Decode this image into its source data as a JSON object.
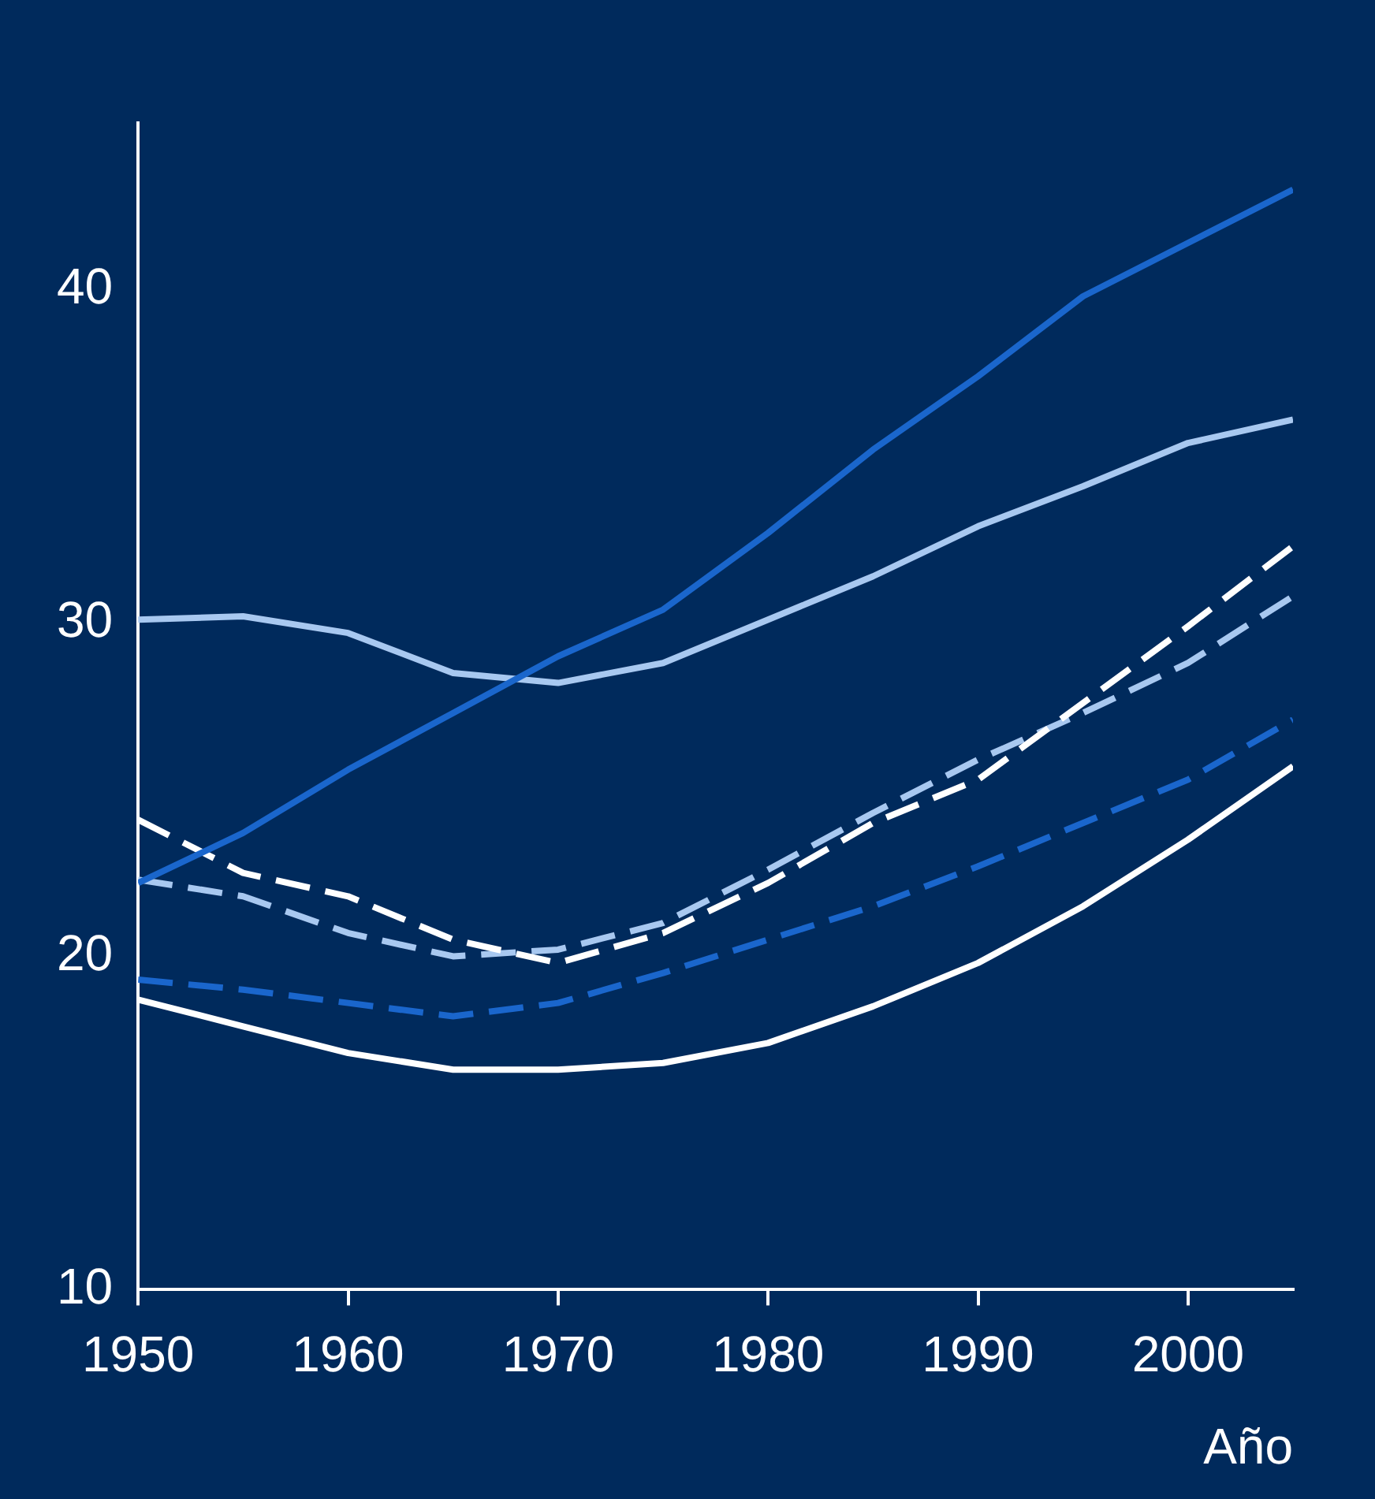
{
  "chart_data": {
    "type": "line",
    "xlabel": "Año",
    "x": [
      1950,
      1955,
      1960,
      1965,
      1970,
      1975,
      1980,
      1985,
      1990,
      1995,
      2000,
      2005
    ],
    "series": [
      {
        "color": "#1a66cc",
        "line_style": "solid",
        "values": [
          22.2,
          23.7,
          25.6,
          27.3,
          29.0,
          30.4,
          32.7,
          35.2,
          37.4,
          39.8,
          41.4,
          43.0
        ]
      },
      {
        "color": "#a8c8f0",
        "line_style": "solid",
        "values": [
          30.1,
          30.2,
          29.7,
          28.5,
          28.2,
          28.8,
          30.1,
          31.4,
          32.9,
          34.1,
          35.4,
          36.1
        ]
      },
      {
        "color": "#ffffff",
        "line_style": "solid",
        "values": [
          18.7,
          17.9,
          17.1,
          16.6,
          16.6,
          16.8,
          17.4,
          18.5,
          19.8,
          21.5,
          23.5,
          25.7
        ]
      },
      {
        "color": "#ffffff",
        "line_style": "dashed",
        "values": [
          24.1,
          22.5,
          21.8,
          20.5,
          19.8,
          20.7,
          22.2,
          24.0,
          25.3,
          27.6,
          29.9,
          32.3
        ]
      },
      {
        "color": "#a8c8f0",
        "line_style": "dashed",
        "values": [
          22.3,
          21.8,
          20.7,
          20.0,
          20.2,
          21.0,
          22.6,
          24.3,
          25.9,
          27.3,
          28.8,
          30.8
        ]
      },
      {
        "color": "#1a66cc",
        "line_style": "dashed",
        "values": [
          19.3,
          19.0,
          18.6,
          18.2,
          18.6,
          19.5,
          20.5,
          21.5,
          22.7,
          24.0,
          25.3,
          27.1
        ]
      }
    ],
    "xlim": [
      1950,
      2005
    ],
    "xticks": [
      1950,
      1960,
      1970,
      1980,
      1990,
      2000
    ],
    "ylim": [
      10,
      45
    ],
    "yticks": [
      10,
      20,
      30,
      40
    ],
    "grid": false,
    "legend": false,
    "marker": "none"
  }
}
